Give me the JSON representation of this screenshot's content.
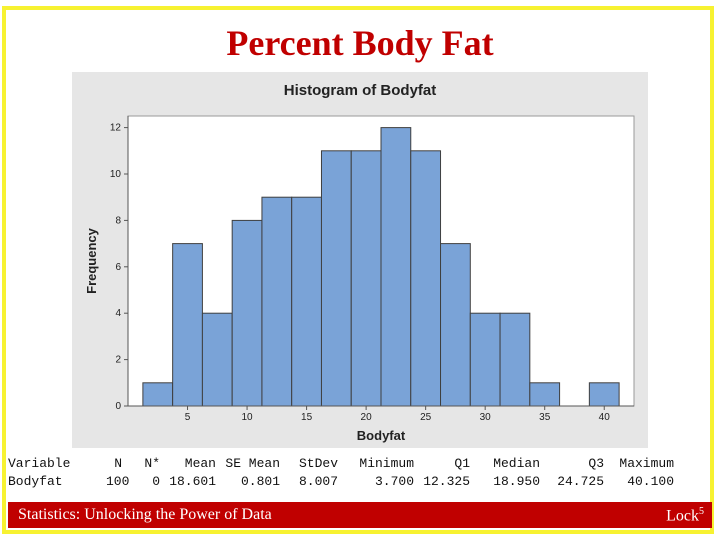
{
  "slide": {
    "title": "Percent Body Fat",
    "footer_left": "Statistics: Unlocking the Power of Data",
    "footer_right": "Lock",
    "footer_superscript": "5",
    "frame_color": "#f7f231",
    "accent_color": "#c00000"
  },
  "chart_data": {
    "type": "bar",
    "title": "Histogram of Bodyfat",
    "xlabel": "Bodyfat",
    "ylabel": "Frequency",
    "bin_width": 2.5,
    "bin_starts": [
      1.25,
      3.75,
      6.25,
      8.75,
      11.25,
      13.75,
      16.25,
      18.75,
      21.25,
      23.75,
      26.25,
      28.75,
      31.25,
      33.75,
      36.25,
      38.75
    ],
    "values": [
      1,
      7,
      4,
      8,
      9,
      9,
      11,
      11,
      12,
      11,
      7,
      4,
      4,
      1,
      0,
      1
    ],
    "xlim": [
      0,
      42.5
    ],
    "ylim": [
      0,
      12.5
    ],
    "xticks": [
      5,
      10,
      15,
      20,
      25,
      30,
      35,
      40
    ],
    "yticks": [
      0,
      2,
      4,
      6,
      8,
      10,
      12
    ],
    "bar_color": "#7aa3d7",
    "grid": false
  },
  "stats_table": {
    "headers": [
      "Variable",
      "N",
      "N*",
      "Mean",
      "SE Mean",
      "StDev",
      "Minimum",
      "Q1",
      "Median",
      "Q3",
      "Maximum"
    ],
    "rows": [
      [
        "Bodyfat",
        "100",
        "0",
        "18.601",
        "0.801",
        "8.007",
        "3.700",
        "12.325",
        "18.950",
        "24.725",
        "40.100"
      ]
    ]
  }
}
